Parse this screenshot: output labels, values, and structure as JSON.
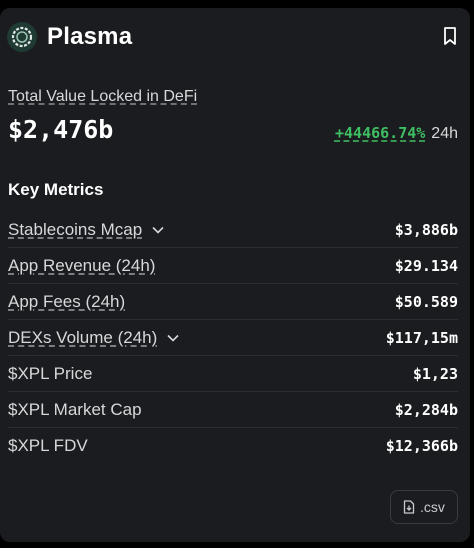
{
  "header": {
    "title": "Plasma",
    "logo_icon": "plasma-logo-icon",
    "bookmark_icon": "bookmark-icon"
  },
  "tvl": {
    "label": "Total Value Locked in DeFi",
    "value": "$2,476b",
    "change": "+44466.74%",
    "period": "24h"
  },
  "section_title": "Key Metrics",
  "metrics": [
    {
      "label": "Stablecoins Mcap",
      "value": "$3,886b",
      "expandable": true
    },
    {
      "label": "App Revenue (24h)",
      "value": "$29.134",
      "expandable": false
    },
    {
      "label": "App Fees (24h)",
      "value": "$50.589",
      "expandable": false
    },
    {
      "label": "DEXs Volume (24h)",
      "value": "$117,15m",
      "expandable": true
    },
    {
      "label": "$XPL Price",
      "value": "$1,23",
      "expandable": false
    },
    {
      "label": "$XPL Market Cap",
      "value": "$2,284b",
      "expandable": false
    },
    {
      "label": "$XPL FDV",
      "value": "$12,366b",
      "expandable": false
    }
  ],
  "csv_button": {
    "label": ".csv",
    "icon": "file-download-icon"
  },
  "colors": {
    "card_bg": "#1b1c1f",
    "positive": "#3fbf63",
    "logo_bg": "#1e3a33"
  }
}
